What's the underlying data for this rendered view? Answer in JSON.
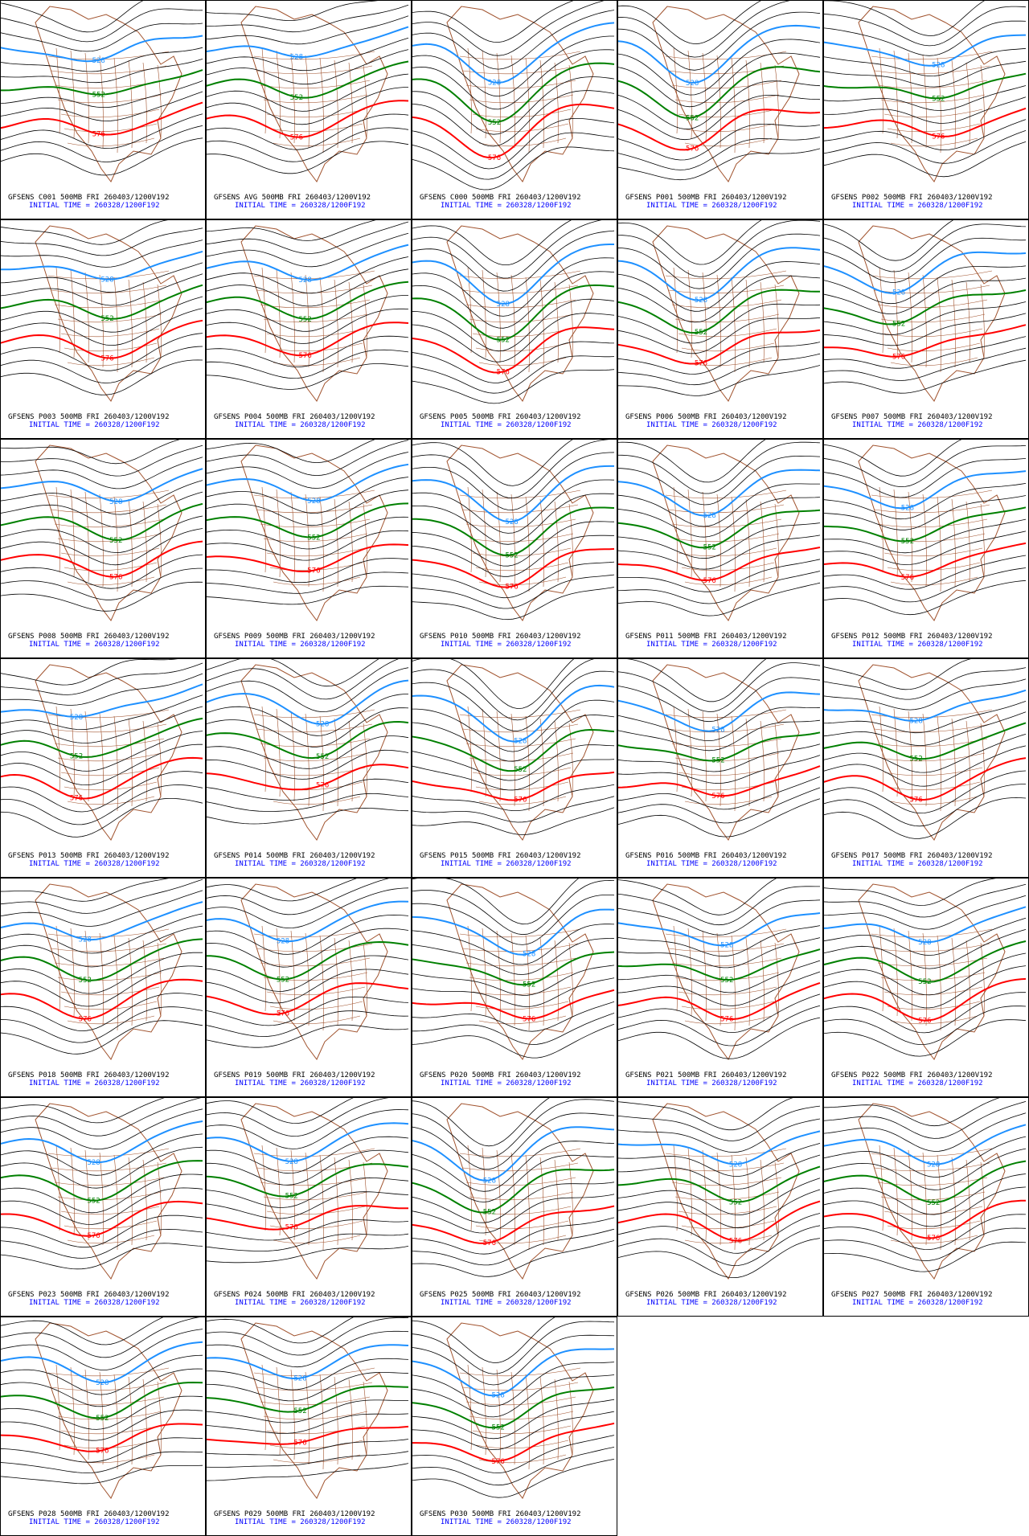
{
  "panels": [
    {
      "title": "GFSENS C001 500MB FRI 260403/1200V192",
      "initial_time": "INITIAL TIME = 260328/1200F192"
    },
    {
      "title": "GFSENS AVG 500MB FRI 260403/1200V192",
      "initial_time": "INITIAL TIME = 260328/1200F192"
    },
    {
      "title": "GFSENS C000 500MB FRI 260403/1200V192",
      "initial_time": "INITIAL TIME = 260328/1200F192"
    },
    {
      "title": "GFSENS P001 500MB FRI 260403/1200V192",
      "initial_time": "INITIAL TIME = 260328/1200F192"
    },
    {
      "title": "GFSENS P002 500MB FRI 260403/1200V192",
      "initial_time": "INITIAL TIME = 260328/1200F192"
    },
    {
      "title": "GFSENS P003 500MB FRI 260403/1200V192",
      "initial_time": "INITIAL TIME = 260328/1200F192"
    },
    {
      "title": "GFSENS P004 500MB FRI 260403/1200V192",
      "initial_time": "INITIAL TIME = 260328/1200F192"
    },
    {
      "title": "GFSENS P005 500MB FRI 260403/1200V192",
      "initial_time": "INITIAL TIME = 260328/1200F192"
    },
    {
      "title": "GFSENS P006 500MB FRI 260403/1200V192",
      "initial_time": "INITIAL TIME = 260328/1200F192"
    },
    {
      "title": "GFSENS P007 500MB FRI 260403/1200V192",
      "initial_time": "INITIAL TIME = 260328/1200F192"
    },
    {
      "title": "GFSENS P008 500MB FRI 260403/1200V192",
      "initial_time": "INITIAL TIME = 260328/1200F192"
    },
    {
      "title": "GFSENS P009 500MB FRI 260403/1200V192",
      "initial_time": "INITIAL TIME = 260328/1200F192"
    },
    {
      "title": "GFSENS P010 500MB FRI 260403/1200V192",
      "initial_time": "INITIAL TIME = 260328/1200F192"
    },
    {
      "title": "GFSENS P011 500MB FRI 260403/1200V192",
      "initial_time": "INITIAL TIME = 260328/1200F192"
    },
    {
      "title": "GFSENS P012 500MB FRI 260403/1200V192",
      "initial_time": "INITIAL TIME = 260328/1200F192"
    },
    {
      "title": "GFSENS P013 500MB FRI 260403/1200V192",
      "initial_time": "INITIAL TIME = 260328/1200F192"
    },
    {
      "title": "GFSENS P014 500MB FRI 260403/1200V192",
      "initial_time": "INITIAL TIME = 260328/1200F192"
    },
    {
      "title": "GFSENS P015 500MB FRI 260403/1200V192",
      "initial_time": "INITIAL TIME = 260328/1200F192"
    },
    {
      "title": "GFSENS P016 500MB FRI 260403/1200V192",
      "initial_time": "INITIAL TIME = 260328/1200F192"
    },
    {
      "title": "GFSENS P017 500MB FRI 260403/1200V192",
      "initial_time": "INITIAL TIME = 260328/1200F192"
    },
    {
      "title": "GFSENS P018 500MB FRI 260403/1200V192",
      "initial_time": "INITIAL TIME = 260328/1200F192"
    },
    {
      "title": "GFSENS P019 500MB FRI 260403/1200V192",
      "initial_time": "INITIAL TIME = 260328/1200F192"
    },
    {
      "title": "GFSENS P020 500MB FRI 260403/1200V192",
      "initial_time": "INITIAL TIME = 260328/1200F192"
    },
    {
      "title": "GFSENS P021 500MB FRI 260403/1200V192",
      "initial_time": "INITIAL TIME = 260328/1200F192"
    },
    {
      "title": "GFSENS P022 500MB FRI 260403/1200V192",
      "initial_time": "INITIAL TIME = 260328/1200F192"
    },
    {
      "title": "GFSENS P023 500MB FRI 260403/1200V192",
      "initial_time": "INITIAL TIME = 260328/1200F192"
    },
    {
      "title": "GFSENS P024 500MB FRI 260403/1200V192",
      "initial_time": "INITIAL TIME = 260328/1200F192"
    },
    {
      "title": "GFSENS P025 500MB FRI 260403/1200V192",
      "initial_time": "INITIAL TIME = 260328/1200F192"
    },
    {
      "title": "GFSENS P026 500MB FRI 260403/1200V192",
      "initial_time": "INITIAL TIME = 260328/1200F192"
    },
    {
      "title": "GFSENS P027 500MB FRI 260403/1200V192",
      "initial_time": "INITIAL TIME = 260328/1200F192"
    },
    {
      "title": "GFSENS P028 500MB FRI 260403/1200V192",
      "initial_time": "INITIAL TIME = 260328/1200F192"
    },
    {
      "title": "GFSENS P029 500MB FRI 260403/1200V192",
      "initial_time": "INITIAL TIME = 260328/1200F192"
    },
    {
      "title": "GFSENS P030 500MB FRI 260403/1200V192",
      "initial_time": "INITIAL TIME = 260328/1200F192"
    }
  ],
  "contour_labels": [
    528,
    552,
    576
  ]
}
